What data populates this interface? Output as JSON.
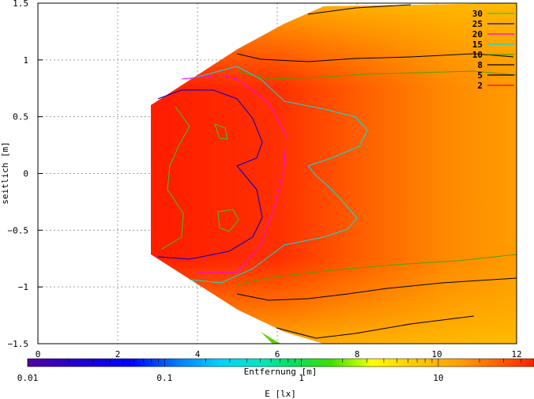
{
  "chart_data": {
    "type": "heatmap",
    "title": "",
    "xlabel": "Entfernung [m]",
    "ylabel": "seitlich [m]",
    "xlim": [
      0,
      12
    ],
    "ylim": [
      -1.5,
      1.5
    ],
    "x_ticks": [
      "0",
      "2",
      "4",
      "6",
      "8",
      "10",
      "12"
    ],
    "y_ticks": [
      "1.5",
      "1",
      "0.5",
      "0",
      "-0.5",
      "-1",
      "-1.5"
    ],
    "grid": true,
    "legend_placement": "top-right",
    "colorbar": {
      "label": "E [lx]",
      "scale": "log",
      "range": [
        0.01,
        50
      ],
      "ticks": [
        "0.01",
        "0.1",
        "1",
        "10"
      ]
    },
    "contours": [
      {
        "level": "30",
        "color": "#32c832"
      },
      {
        "level": "25",
        "color": "#0000c8"
      },
      {
        "level": "20",
        "color": "#ff00ff"
      },
      {
        "level": "15",
        "color": "#00e0e0"
      },
      {
        "level": "10",
        "color": "#4aa000"
      },
      {
        "level": "8",
        "color": "#000000"
      },
      {
        "level": "5",
        "color": "#000000"
      },
      {
        "level": "2",
        "color": "#ff0000"
      }
    ]
  }
}
